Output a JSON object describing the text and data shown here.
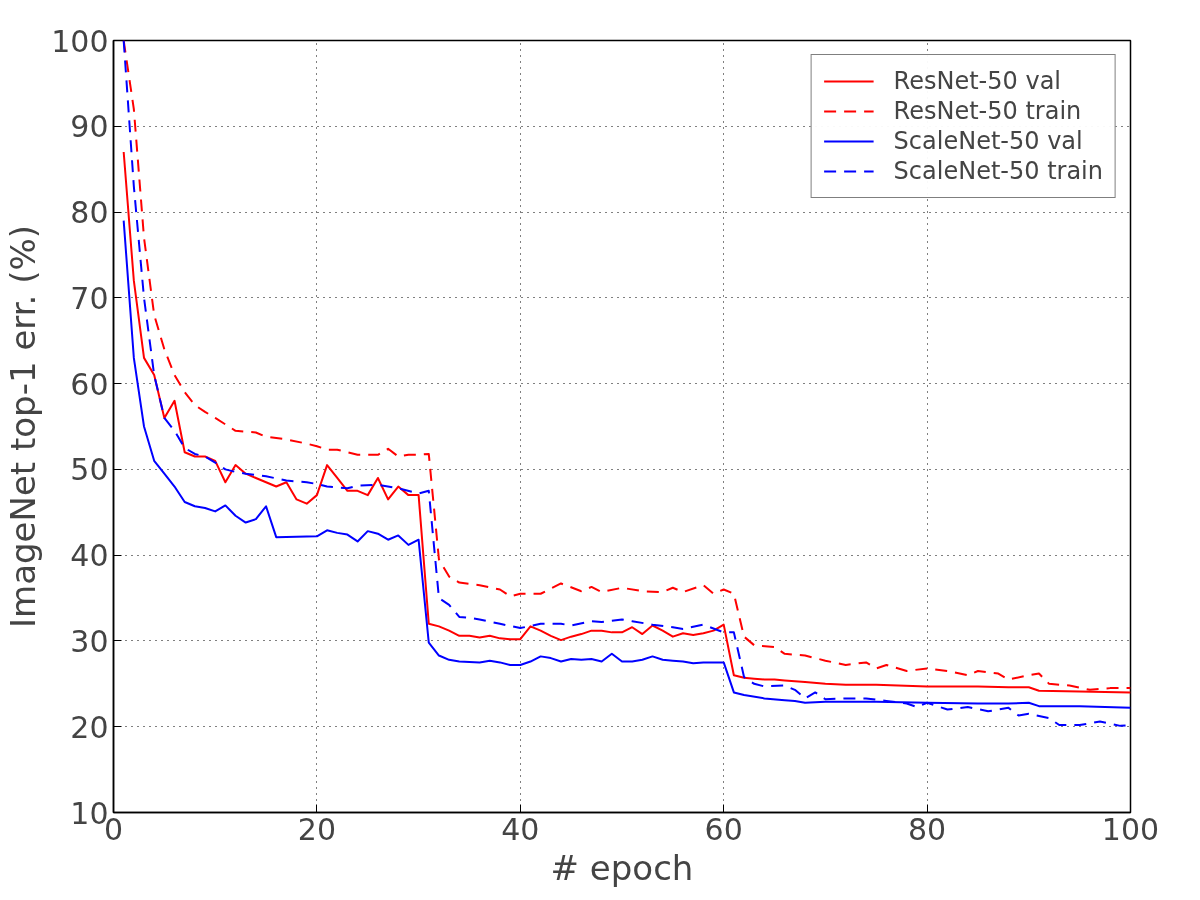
{
  "chart_data": {
    "type": "line",
    "xlabel": "# epoch",
    "ylabel": "ImageNet top-1 err. (%)",
    "xlim": [
      0,
      100
    ],
    "ylim": [
      10,
      100
    ],
    "xticks": [
      0,
      20,
      40,
      60,
      80,
      100
    ],
    "yticks": [
      10,
      20,
      30,
      40,
      50,
      60,
      70,
      80,
      90,
      100
    ],
    "grid": true,
    "legend": "top right",
    "marker": "none",
    "series": [
      {
        "name": "ResNet-50 val",
        "color": "#ff0000",
        "line_style": "solid",
        "x": [
          1,
          2,
          3,
          4,
          5,
          6,
          7,
          8,
          9,
          10,
          11,
          12,
          13,
          14,
          15,
          16,
          17,
          18,
          19,
          20,
          21,
          22,
          23,
          24,
          25,
          26,
          27,
          28,
          29,
          30,
          31,
          32,
          33,
          34,
          35,
          36,
          37,
          38,
          39,
          40,
          41,
          42,
          43,
          44,
          45,
          46,
          47,
          48,
          49,
          50,
          51,
          52,
          53,
          54,
          55,
          56,
          57,
          58,
          59,
          60,
          61,
          62,
          63,
          64,
          65,
          66,
          67,
          68,
          70,
          72,
          75,
          80,
          85,
          88,
          90,
          91,
          95,
          100
        ],
        "values": [
          87,
          72,
          63,
          61,
          56,
          58,
          52,
          51.5,
          51.5,
          51,
          48.5,
          50.5,
          49.5,
          49,
          48.5,
          48,
          48.5,
          46.5,
          46,
          47,
          50.5,
          49,
          47.5,
          47.5,
          47,
          49,
          46.5,
          48,
          47,
          47,
          32,
          31.7,
          31.2,
          30.6,
          30.6,
          30.4,
          30.6,
          30.3,
          30.2,
          30.2,
          31.7,
          31.2,
          30.6,
          30.1,
          30.5,
          30.8,
          31.2,
          31.2,
          31,
          31,
          31.6,
          30.8,
          31.8,
          31.2,
          30.5,
          30.9,
          30.7,
          30.9,
          31.2,
          31.9,
          26,
          25.7,
          25.6,
          25.5,
          25.5,
          25.4,
          25.3,
          25.2,
          25,
          24.9,
          24.9,
          24.7,
          24.7,
          24.6,
          24.6,
          24.2,
          24.1,
          24
        ]
      },
      {
        "name": "ResNet-50 train",
        "color": "#ff0000",
        "line_style": "dashed",
        "x": [
          1,
          2,
          3,
          4,
          5,
          6,
          7,
          8,
          9,
          10,
          12,
          14,
          15,
          17,
          19,
          20,
          21,
          22,
          23,
          24,
          26,
          27,
          28,
          29,
          30,
          31,
          32,
          33,
          34,
          36,
          38,
          39,
          40,
          42,
          44,
          46,
          47,
          48,
          50,
          52,
          54,
          55,
          56,
          58,
          59,
          60,
          61,
          62,
          63,
          65,
          66,
          68,
          70,
          72,
          74,
          75,
          76,
          78,
          80,
          82,
          84,
          85,
          87,
          88,
          90,
          91,
          92,
          94,
          96,
          98,
          100
        ],
        "values": [
          100,
          92,
          77,
          68,
          64,
          61,
          59,
          57.5,
          56.7,
          56,
          54.5,
          54.3,
          53.8,
          53.5,
          53,
          52.7,
          52.3,
          52.3,
          52,
          51.7,
          51.7,
          52.4,
          51.5,
          51.7,
          51.7,
          51.8,
          39.5,
          37.5,
          36.8,
          36.5,
          36,
          35.2,
          35.5,
          35.5,
          36.7,
          35.8,
          36.3,
          35.7,
          36.2,
          35.8,
          35.7,
          36.2,
          35.7,
          36.5,
          35.5,
          36,
          35.5,
          30.5,
          29.5,
          29.3,
          28.5,
          28.3,
          27.7,
          27.2,
          27.5,
          26.8,
          27.2,
          26.5,
          26.8,
          26.5,
          26,
          26.5,
          26.2,
          25.5,
          26,
          26.2,
          25,
          24.8,
          24.3,
          24.5,
          24.5
        ]
      },
      {
        "name": "ScaleNet-50 val",
        "color": "#0000ff",
        "line_style": "solid",
        "x": [
          1,
          2,
          3,
          4,
          5,
          6,
          7,
          8,
          9,
          10,
          11,
          12,
          13,
          14,
          15,
          16,
          20,
          21,
          22,
          23,
          24,
          25,
          26,
          27,
          28,
          29,
          30,
          31,
          32,
          33,
          34,
          36,
          37,
          38,
          39,
          40,
          41,
          42,
          43,
          44,
          45,
          46,
          47,
          48,
          49,
          50,
          51,
          52,
          53,
          54,
          55,
          56,
          57,
          58,
          60,
          61,
          62,
          64,
          66,
          67,
          68,
          70,
          75,
          80,
          85,
          88,
          90,
          91,
          95,
          100
        ],
        "values": [
          79,
          63,
          55,
          51,
          49.5,
          48,
          46.2,
          45.7,
          45.5,
          45.1,
          45.8,
          44.6,
          43.8,
          44.2,
          45.7,
          42.1,
          42.2,
          42.9,
          42.6,
          42.4,
          41.6,
          42.8,
          42.5,
          41.8,
          42.3,
          41.2,
          41.8,
          29.8,
          28.3,
          27.8,
          27.6,
          27.5,
          27.7,
          27.5,
          27.2,
          27.2,
          27.6,
          28.2,
          28,
          27.6,
          27.9,
          27.8,
          27.9,
          27.6,
          28.5,
          27.6,
          27.6,
          27.8,
          28.2,
          27.8,
          27.7,
          27.6,
          27.4,
          27.5,
          27.5,
          24,
          23.7,
          23.3,
          23.1,
          23,
          22.8,
          22.9,
          22.9,
          22.8,
          22.7,
          22.7,
          22.8,
          22.4,
          22.4,
          22.2
        ]
      },
      {
        "name": "ScaleNet-50 train",
        "color": "#0000ff",
        "line_style": "dashed",
        "x": [
          1,
          2,
          3,
          4,
          5,
          6,
          7,
          8,
          9,
          10,
          11,
          12,
          13,
          15,
          17,
          19,
          20,
          21,
          23,
          24,
          26,
          28,
          30,
          31,
          32,
          33,
          34,
          35,
          36,
          38,
          40,
          42,
          44,
          45,
          47,
          48,
          50,
          51,
          53,
          55,
          56,
          58,
          60,
          61,
          62,
          63,
          64,
          66,
          67,
          68,
          69,
          70,
          72,
          74,
          76,
          78,
          79,
          80,
          82,
          84,
          86,
          88,
          89,
          90,
          92,
          93,
          95,
          97,
          99,
          100
        ],
        "values": [
          100,
          83,
          70,
          61,
          56,
          54.5,
          52.5,
          51.8,
          51.5,
          50.8,
          50,
          49.7,
          49.5,
          49.2,
          48.7,
          48.5,
          48.3,
          48,
          47.8,
          48.1,
          48.2,
          47.8,
          47.2,
          47.5,
          35,
          34.2,
          32.8,
          32.7,
          32.5,
          32,
          31.5,
          32,
          32,
          31.8,
          32.3,
          32.2,
          32.5,
          32.3,
          31.9,
          31.6,
          31.4,
          31.9,
          31,
          31,
          25.8,
          25,
          24.7,
          24.8,
          24.3,
          23.3,
          24,
          23.2,
          23.3,
          23.3,
          23,
          22.7,
          22.3,
          22.8,
          22,
          22.3,
          21.8,
          22.2,
          21.3,
          21.5,
          21,
          20.2,
          20.2,
          20.6,
          20.1,
          20.2
        ]
      }
    ]
  }
}
